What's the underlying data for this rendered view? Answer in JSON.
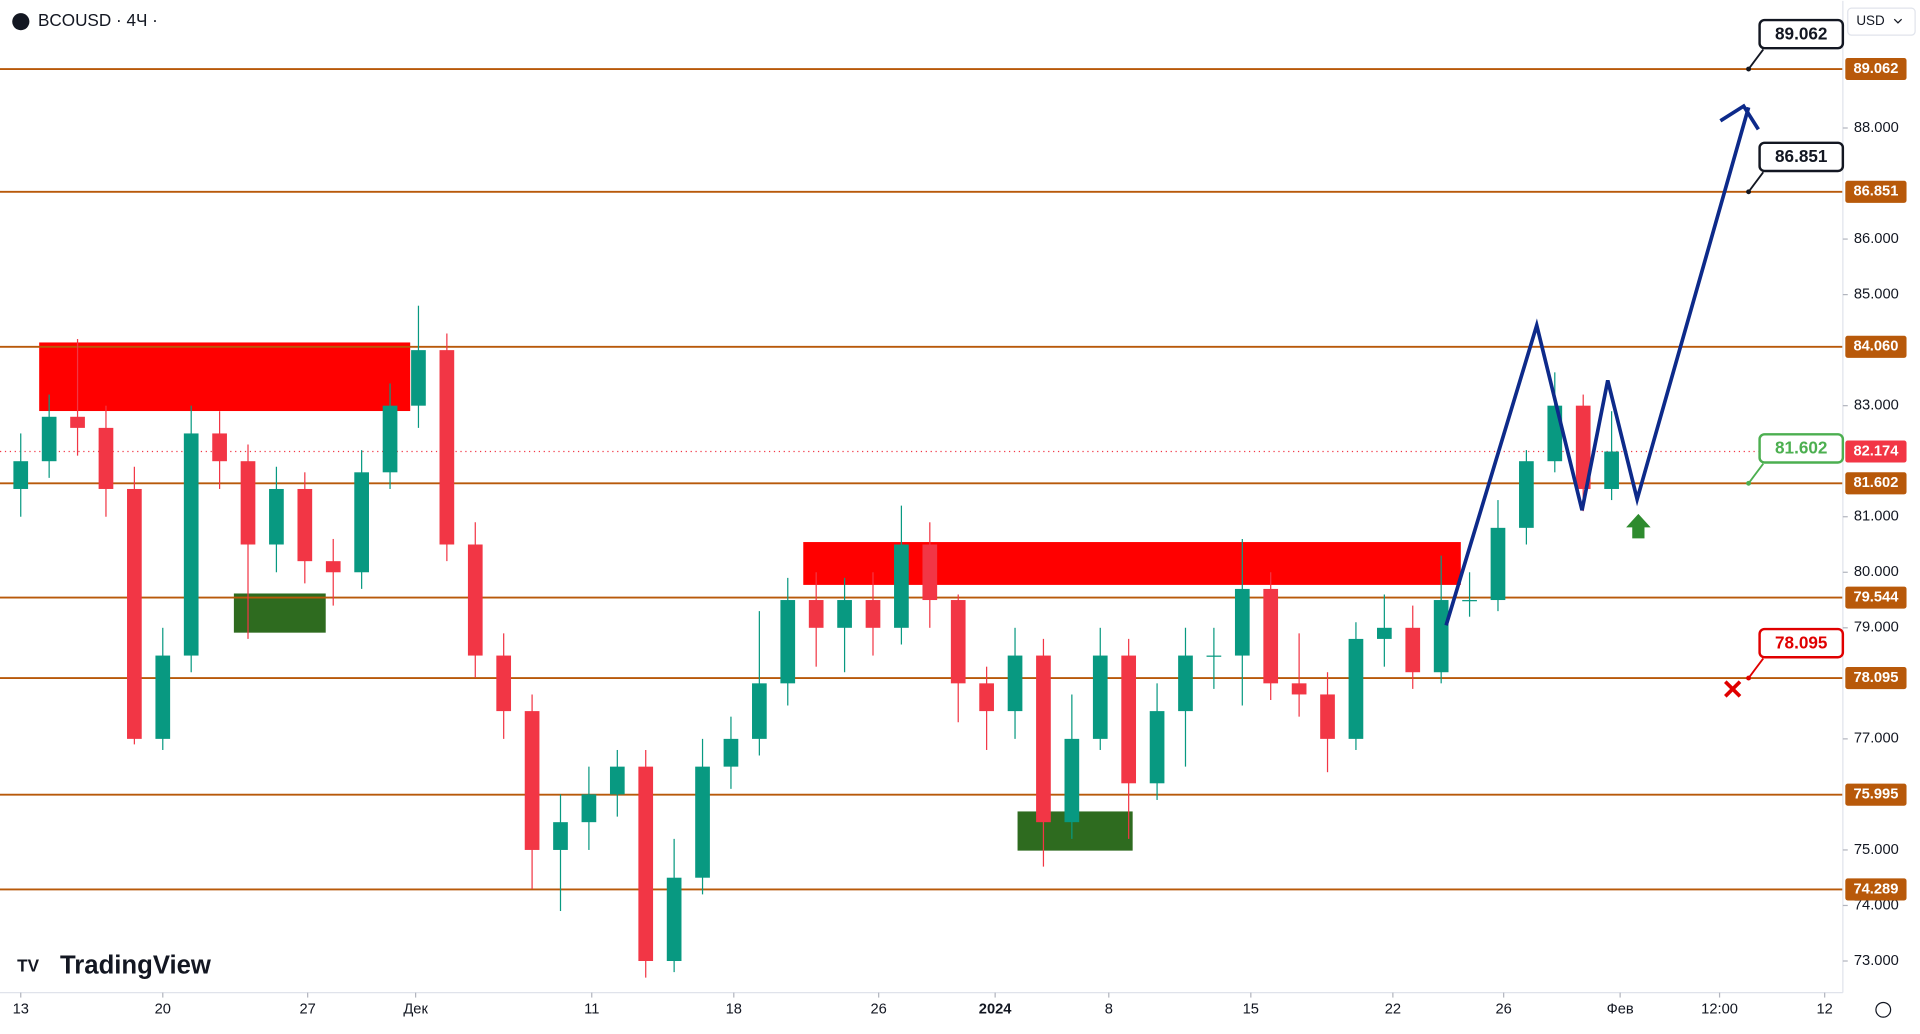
{
  "chart_data": {
    "type": "candlestick",
    "title": "BCOUSD · 4Ч ·",
    "currency": "USD",
    "brand": "TradingView",
    "x": [
      0,
      1,
      2,
      3,
      4,
      5,
      6,
      7,
      8,
      9,
      10,
      11,
      12,
      13,
      14,
      15,
      16,
      17,
      18,
      19,
      20,
      21,
      22,
      23,
      24,
      25,
      26,
      27,
      28,
      29,
      30,
      31,
      32,
      33,
      34,
      35,
      36,
      37,
      38,
      39,
      40,
      41,
      42,
      43,
      44,
      45,
      46,
      47,
      48,
      49,
      50,
      51,
      52,
      53,
      54,
      55,
      56
    ],
    "open": [
      81.5,
      82.0,
      82.8,
      82.6,
      81.5,
      77.0,
      78.5,
      82.5,
      82.0,
      80.5,
      81.5,
      80.2,
      80.0,
      81.8,
      83.0,
      84.0,
      80.5,
      78.5,
      77.5,
      75.0,
      75.5,
      76.0,
      76.5,
      73.0,
      74.5,
      76.5,
      77.0,
      78.0,
      79.5,
      79.0,
      79.5,
      79.0,
      80.5,
      79.5,
      78.0,
      77.5,
      78.5,
      75.5,
      77.0,
      78.5,
      76.2,
      77.5,
      78.5,
      78.5,
      79.7,
      78.0,
      77.8,
      77.0,
      78.8,
      79.0,
      78.2,
      79.5,
      79.5,
      80.8,
      82.0,
      83.0,
      81.5
    ],
    "high": [
      82.5,
      83.2,
      84.2,
      83.0,
      81.9,
      79.0,
      83.0,
      82.9,
      82.3,
      81.9,
      81.8,
      80.6,
      82.2,
      83.4,
      84.8,
      84.3,
      80.9,
      78.9,
      77.8,
      76.0,
      76.5,
      76.8,
      76.8,
      75.2,
      77.0,
      77.4,
      79.3,
      79.9,
      80.0,
      79.9,
      80.0,
      81.2,
      80.9,
      79.6,
      78.3,
      79.0,
      78.8,
      77.8,
      79.0,
      78.8,
      78.0,
      79.0,
      79.0,
      80.6,
      80.0,
      78.9,
      78.2,
      79.1,
      79.6,
      79.4,
      80.3,
      80.0,
      81.3,
      82.2,
      83.6,
      83.2,
      82.9
    ],
    "low": [
      81.0,
      81.7,
      82.1,
      81.0,
      76.9,
      76.8,
      78.2,
      81.5,
      78.8,
      80.0,
      79.8,
      79.4,
      79.7,
      81.5,
      82.6,
      80.2,
      78.1,
      77.0,
      74.3,
      73.9,
      75.0,
      75.6,
      72.7,
      72.8,
      74.2,
      76.1,
      76.7,
      77.6,
      78.3,
      78.2,
      78.5,
      78.7,
      79.0,
      77.3,
      76.8,
      77.0,
      74.7,
      75.2,
      76.8,
      75.2,
      75.9,
      76.5,
      77.9,
      77.6,
      77.7,
      77.4,
      76.4,
      76.8,
      78.3,
      77.9,
      78.0,
      79.2,
      79.3,
      80.5,
      81.8,
      81.1,
      81.3
    ],
    "close": [
      82.0,
      82.8,
      82.6,
      81.5,
      77.0,
      78.5,
      82.5,
      82.0,
      80.5,
      81.5,
      80.2,
      80.0,
      81.8,
      83.0,
      84.0,
      80.5,
      78.5,
      77.5,
      75.0,
      75.5,
      76.0,
      76.5,
      73.0,
      74.5,
      76.5,
      77.0,
      78.0,
      79.5,
      79.0,
      79.5,
      79.0,
      80.5,
      79.5,
      78.0,
      77.5,
      78.5,
      75.5,
      77.0,
      78.5,
      76.2,
      77.5,
      78.5,
      78.5,
      79.7,
      78.0,
      77.8,
      77.0,
      78.8,
      79.0,
      78.2,
      79.5,
      79.5,
      80.8,
      82.0,
      83.0,
      81.5,
      82.174
    ],
    "up_color": "#089981",
    "down_color": "#f23645",
    "level_color": "#b8590a",
    "last_price": 82.174,
    "levels": [
      89.062,
      86.851,
      {
        "value": 84.06,
        "label": "84.060"
      },
      81.602,
      79.544,
      78.095,
      75.995,
      74.289
    ],
    "xlim": [
      -0.73,
      64.14
    ],
    "xticks": [
      {
        "value": 0,
        "label": "13"
      },
      {
        "value": 5,
        "label": "20"
      },
      {
        "value": 10.1,
        "label": "27"
      },
      {
        "value": 13.9,
        "label": "Дек"
      },
      {
        "value": 20.1,
        "label": "11"
      },
      {
        "value": 25.1,
        "label": "18"
      },
      {
        "value": 30.2,
        "label": "26"
      },
      {
        "value": 34.3,
        "label": "2024"
      },
      {
        "value": 38.3,
        "label": "8"
      },
      {
        "value": 43.3,
        "label": "15"
      },
      {
        "value": 48.3,
        "label": "22"
      },
      {
        "value": 52.2,
        "label": "26"
      },
      {
        "value": 56.3,
        "label": "Фев"
      },
      {
        "value": 59.8,
        "label": "12:00"
      },
      {
        "value": 63.5,
        "label": "12"
      }
    ],
    "ylim": [
      72.43,
      90.29
    ],
    "yticks": [
      {
        "value": 73,
        "label": "73.000"
      },
      {
        "value": 74,
        "label": "74.000"
      },
      {
        "value": 75,
        "label": "75.000"
      },
      {
        "value": 77,
        "label": "77.000"
      },
      {
        "value": 79,
        "label": "79.000"
      },
      {
        "value": 80,
        "label": "80.000"
      },
      {
        "value": 81,
        "label": "81.000"
      },
      {
        "value": 83,
        "label": "83.000"
      },
      {
        "value": 85,
        "label": "85.000"
      },
      {
        "value": 86,
        "label": "86.000"
      },
      {
        "value": 88,
        "label": "88.000"
      }
    ]
  }
}
